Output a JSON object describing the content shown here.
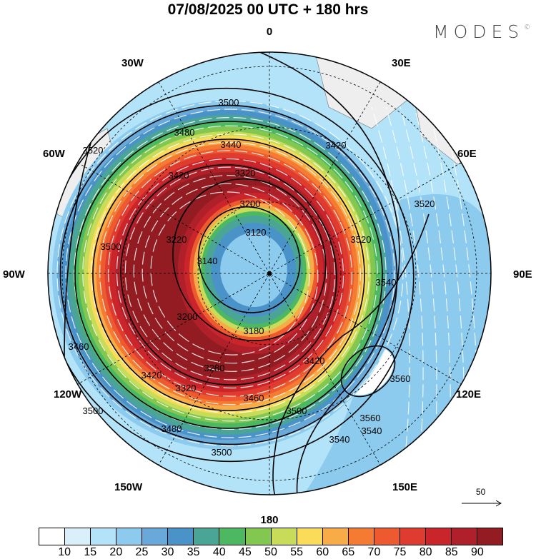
{
  "title": "07/08/2025  00 UTC  + 180 hrs",
  "logo": {
    "text": "MODES",
    "mark": "©"
  },
  "longitude_labels": [
    "0",
    "30E",
    "60E",
    "90E",
    "120E",
    "150E",
    "180",
    "150W",
    "120W",
    "90W",
    "60W",
    "30W"
  ],
  "contour_labels": [
    "3500",
    "3480",
    "3440",
    "3420",
    "3320",
    "3200",
    "3120",
    "3140",
    "3220",
    "3200",
    "3180",
    "3280",
    "3320",
    "3420",
    "3460",
    "3480",
    "3500",
    "3520",
    "3500",
    "3460",
    "3420",
    "3520",
    "3540",
    "3520",
    "3420",
    "3500",
    "3540",
    "3560",
    "3560",
    "3540",
    "3500"
  ],
  "wind_scale": {
    "label": "50",
    "icon": "arrow-right-icon"
  },
  "colorbar": {
    "colors": [
      "#ffffff",
      "#d9f0fb",
      "#b3e3f8",
      "#8ccbee",
      "#69a9d9",
      "#4a93c8",
      "#4aa596",
      "#4db862",
      "#82c750",
      "#c8dc5a",
      "#fbdc5a",
      "#f8ac48",
      "#f57a32",
      "#ed5a30",
      "#e03b2f",
      "#cb252c",
      "#b0202a",
      "#921c22"
    ],
    "ticks": [
      "10",
      "15",
      "20",
      "25",
      "30",
      "35",
      "40",
      "45",
      "50",
      "55",
      "60",
      "65",
      "70",
      "75",
      "80",
      "85",
      "90"
    ]
  }
}
